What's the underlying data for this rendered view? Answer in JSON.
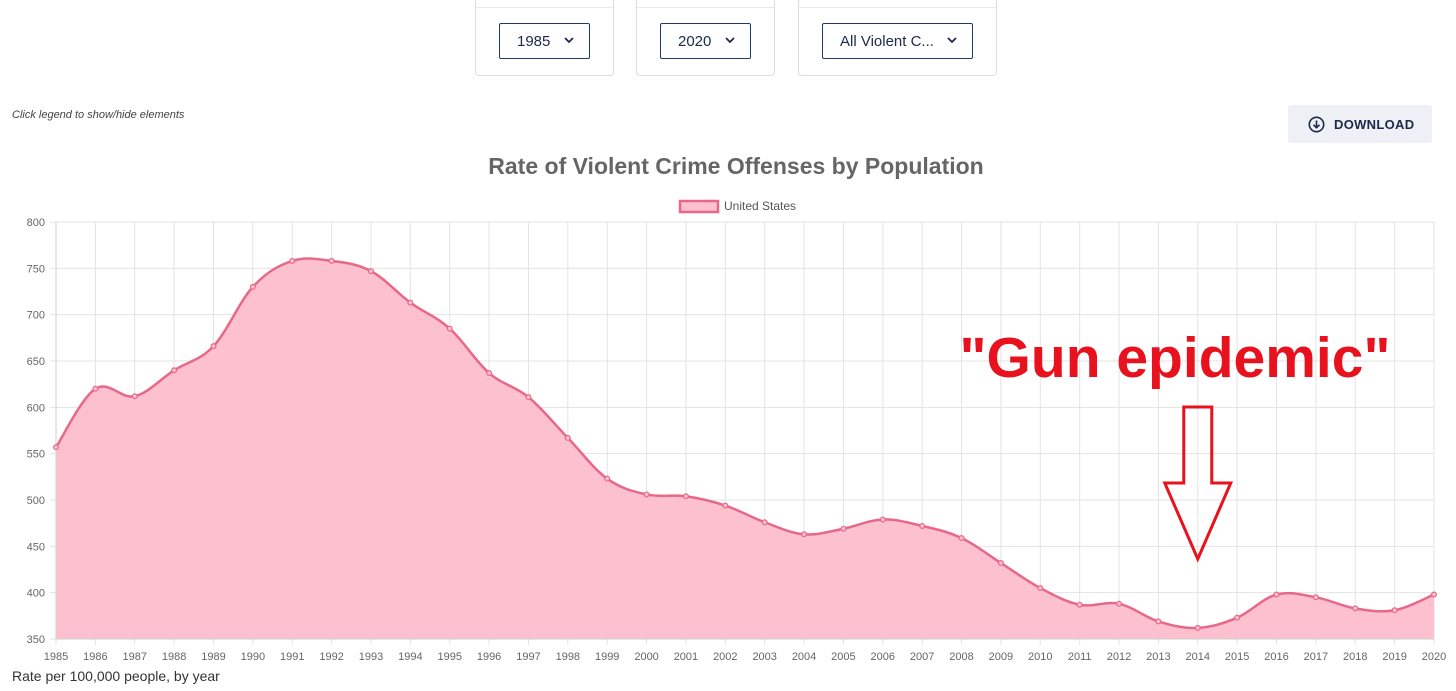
{
  "filters": {
    "start_year": "1985",
    "end_year": "2020",
    "offense": "All Violent C..."
  },
  "hint_text": "Click legend to show/hide elements",
  "download": {
    "label": "DOWNLOAD",
    "icon": "download-circle-icon"
  },
  "footer_note": "Rate per 100,000 people, by year",
  "colors": {
    "line": "#e8688a",
    "fill": "#fcc0cf",
    "annotation": "#e8111e",
    "select_border": "#1f3a6b"
  },
  "annotation": {
    "text": "\"Gun epidemic\"",
    "points_to_year": 2014
  },
  "chart_data": {
    "type": "area",
    "title": "Rate of Violent Crime Offenses by Population",
    "xlabel": "",
    "ylabel": "",
    "ylim": [
      350,
      800
    ],
    "yticks": [
      350,
      400,
      450,
      500,
      550,
      600,
      650,
      700,
      750,
      800
    ],
    "grid": true,
    "legend_placement": "top-center",
    "categories": [
      "1985",
      "1986",
      "1987",
      "1988",
      "1989",
      "1990",
      "1991",
      "1992",
      "1993",
      "1994",
      "1995",
      "1996",
      "1997",
      "1998",
      "1999",
      "2000",
      "2001",
      "2002",
      "2003",
      "2004",
      "2005",
      "2006",
      "2007",
      "2008",
      "2009",
      "2010",
      "2011",
      "2012",
      "2013",
      "2014",
      "2015",
      "2016",
      "2017",
      "2018",
      "2019",
      "2020"
    ],
    "series": [
      {
        "name": "United States",
        "values": [
          557,
          620,
          612,
          640,
          666,
          730,
          758,
          758,
          747,
          713,
          685,
          637,
          611,
          567,
          523,
          506,
          504,
          494,
          476,
          463,
          469,
          479,
          472,
          459,
          432,
          405,
          387,
          388,
          369,
          362,
          373,
          398,
          395,
          383,
          381,
          398
        ]
      }
    ]
  }
}
